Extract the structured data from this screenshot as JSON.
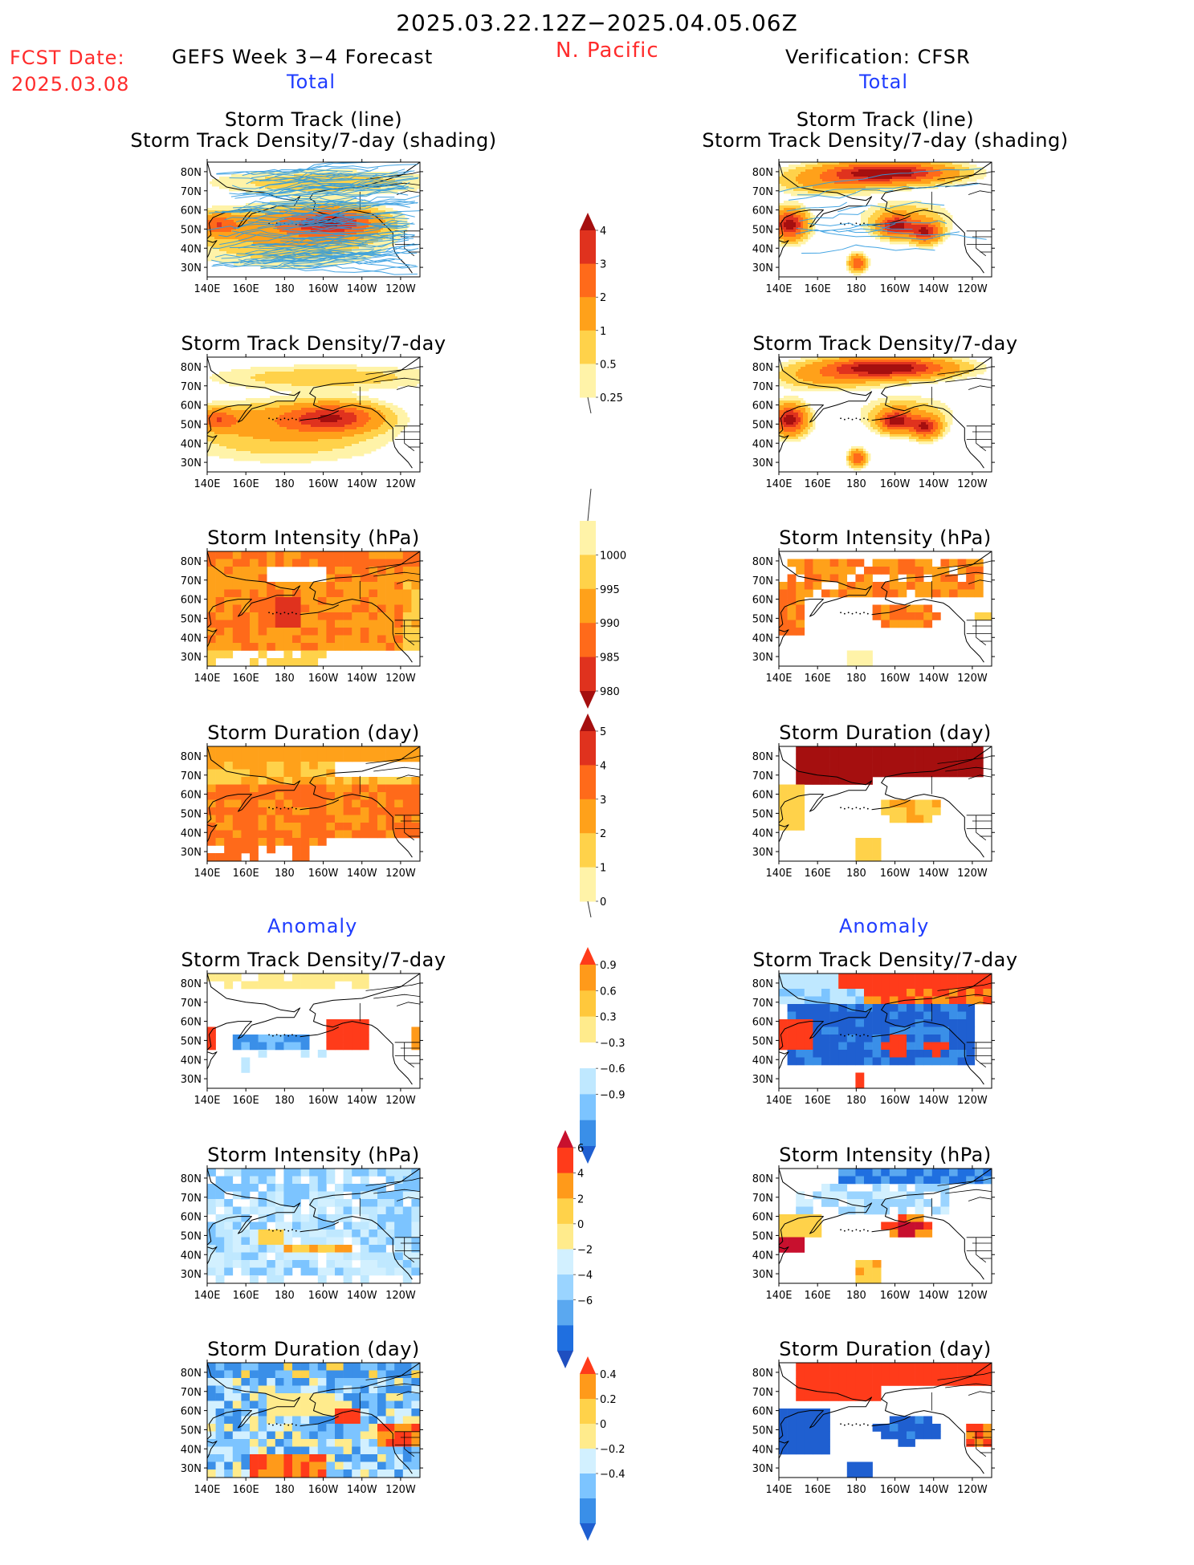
{
  "header": {
    "date_range": "2025.03.22.12Z−2025.04.05.06Z",
    "region": "N. Pacific",
    "fcst_label": "FCST Date:",
    "fcst_date": "2025.03.08",
    "left_title": "GEFS Week 3−4 Forecast",
    "right_title": "Verification: CFSR",
    "total_label": "Total",
    "anomaly_label": "Anomaly"
  },
  "axes": {
    "lat_ticks": [
      "80N",
      "70N",
      "60N",
      "50N",
      "40N",
      "30N"
    ],
    "lon_ticks": [
      "140E",
      "160E",
      "180",
      "160W",
      "140W",
      "120W"
    ]
  },
  "panels": [
    {
      "id": "fc-track",
      "title1": "Storm Track (line)",
      "title2": "Storm Track Density/7-day (shading)",
      "kind": "track",
      "source": "forecast"
    },
    {
      "id": "vf-track",
      "title1": "Storm Track (line)",
      "title2": "Storm Track Density/7-day (shading)",
      "kind": "track",
      "source": "verification"
    },
    {
      "id": "fc-density",
      "title1": "Storm Track Density/7-day",
      "kind": "density",
      "source": "forecast"
    },
    {
      "id": "vf-density",
      "title1": "Storm Track Density/7-day",
      "kind": "density",
      "source": "verification"
    },
    {
      "id": "fc-intensity",
      "title1": "Storm Intensity (hPa)",
      "kind": "intensity",
      "source": "forecast"
    },
    {
      "id": "vf-intensity",
      "title1": "Storm Intensity (hPa)",
      "kind": "intensity",
      "source": "verification"
    },
    {
      "id": "fc-duration",
      "title1": "Storm Duration (day)",
      "kind": "duration",
      "source": "forecast"
    },
    {
      "id": "vf-duration",
      "title1": "Storm Duration (day)",
      "kind": "duration",
      "source": "verification"
    },
    {
      "id": "fc-density-anom",
      "title1": "Storm Track Density/7-day",
      "kind": "density-anom",
      "source": "forecast"
    },
    {
      "id": "vf-density-anom",
      "title1": "Storm Track Density/7-day",
      "kind": "density-anom",
      "source": "verification"
    },
    {
      "id": "fc-intensity-anom",
      "title1": "Storm Intensity (hPa)",
      "kind": "intensity-anom",
      "source": "forecast"
    },
    {
      "id": "vf-intensity-anom",
      "title1": "Storm Intensity (hPa)",
      "kind": "intensity-anom",
      "source": "verification"
    },
    {
      "id": "fc-duration-anom",
      "title1": "Storm Duration (day)",
      "kind": "duration-anom",
      "source": "forecast"
    },
    {
      "id": "vf-duration-anom",
      "title1": "Storm Duration (day)",
      "kind": "duration-anom",
      "source": "verification"
    }
  ],
  "colorbars": [
    {
      "id": "density",
      "labels": [
        "4",
        "3",
        "2",
        "1",
        "0.5",
        "0.25"
      ],
      "colors": [
        "#a50f0f",
        "#e0321e",
        "#ff6a1a",
        "#ffa11a",
        "#ffd24a",
        "#fff3a8"
      ],
      "tails": "top"
    },
    {
      "id": "intensity",
      "labels": [
        "1000",
        "995",
        "990",
        "985",
        "980"
      ],
      "colors": [
        "#fff3a8",
        "#ffd24a",
        "#ffa11a",
        "#ff6a1a",
        "#e0321e",
        "#a50f0f"
      ],
      "tails": "bottom"
    },
    {
      "id": "duration",
      "labels": [
        "5",
        "4",
        "3",
        "2",
        "1",
        "0"
      ],
      "colors": [
        "#a50f0f",
        "#e0321e",
        "#ff6a1a",
        "#ffa11a",
        "#ffd24a",
        "#fff3a8"
      ],
      "tails": "top"
    },
    {
      "id": "density-anom",
      "labels": [
        "0.9",
        "0.6",
        "0.3",
        "−0.3",
        "−0.6",
        "−0.9"
      ],
      "colors": [
        "#ff3b1a",
        "#ff9a1a",
        "#ffc83c",
        "#ffeb8c",
        "#ffffff",
        "#bfe8ff",
        "#7cc4ff",
        "#3a8fe8",
        "#1f5fd0"
      ],
      "tails": "both"
    },
    {
      "id": "intensity-anom",
      "labels": [
        "6",
        "4",
        "2",
        "0",
        "−2",
        "−4",
        "−6"
      ],
      "colors": [
        "#c8102e",
        "#ff3b1a",
        "#ff9a1a",
        "#ffd24a",
        "#ffeb8c",
        "#d2f0ff",
        "#9ad4ff",
        "#5aa8f0",
        "#1f6fe0",
        "#1f4fc0"
      ],
      "tails": "both"
    },
    {
      "id": "duration-anom",
      "labels": [
        "0.4",
        "0.2",
        "0",
        "−0.2",
        "−0.4"
      ],
      "colors": [
        "#ff3b1a",
        "#ff9a1a",
        "#ffd24a",
        "#ffeb8c",
        "#d2f0ff",
        "#7cc4ff",
        "#3a8fe8",
        "#1f5fd0"
      ],
      "tails": "both"
    }
  ]
}
